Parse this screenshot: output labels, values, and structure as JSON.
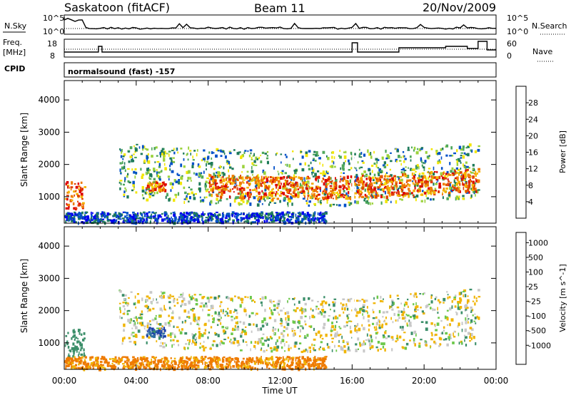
{
  "header": {
    "station": "Saskatoon (fitACF)",
    "beam": "Beam 11",
    "date": "20/Nov/2009"
  },
  "info_panels": {
    "nsky_label": "N.Sky",
    "nsky_ticks": [
      "10^5",
      "10^0"
    ],
    "nsearch_label": "N.Search",
    "freq_label_1": "Freq.",
    "freq_label_2": "[MHz]",
    "freq_ticks": [
      "18",
      "8"
    ],
    "nave_ticks": [
      "60",
      "0"
    ],
    "nave_label": "Nave",
    "cpid_label": "CPID",
    "cpid_value": "normalsound (fast) -157"
  },
  "chart_data": [
    {
      "type": "heatmap",
      "panel": "power",
      "ylabel": "Slant Range [km]",
      "ylim": [
        180,
        4600
      ],
      "yticks": [
        1000,
        2000,
        3000,
        4000
      ],
      "xlim_hours": [
        0,
        24
      ],
      "colorbar": {
        "label": "Power [dB]",
        "ticks": [
          4,
          8,
          12,
          16,
          20,
          24,
          28
        ],
        "colors": [
          "#0000ee",
          "#0050c8",
          "#1e7a5a",
          "#4fa85a",
          "#9bd23c",
          "#f2e600",
          "#f5b400",
          "#ee7a00",
          "#e04000",
          "#dd0000"
        ]
      },
      "description_bands": [
        {
          "t": [
            0.0,
            1.1
          ],
          "range": [
            650,
            1500
          ],
          "level": "high"
        },
        {
          "t": [
            4.5,
            5.6
          ],
          "range": [
            1200,
            1500
          ],
          "level": "high"
        },
        {
          "t": [
            3.0,
            23.0
          ],
          "range": [
            1000,
            2700
          ],
          "level": "medium"
        },
        {
          "t": [
            8.0,
            23.0
          ],
          "range": [
            1200,
            1900
          ],
          "level": "high"
        },
        {
          "t": [
            0.0,
            14.5
          ],
          "range": [
            200,
            550
          ],
          "level": "low"
        }
      ]
    },
    {
      "type": "heatmap",
      "panel": "velocity",
      "ylabel": "Slant Range [km]",
      "ylim": [
        180,
        4600
      ],
      "yticks": [
        1000,
        2000,
        3000,
        4000
      ],
      "xlim_hours": [
        0,
        24
      ],
      "xlabel": "Time UT",
      "xticks": [
        "00:00",
        "04:00",
        "08:00",
        "12:00",
        "16:00",
        "20:00",
        "00:00"
      ],
      "colorbar": {
        "label": "Velocity [m s^-1]",
        "ticks": [
          "1000",
          "500",
          "100",
          "25",
          "-25",
          "-100",
          "-500",
          "-1000"
        ],
        "colors": [
          "#1a3ca8",
          "#2f6fa0",
          "#3c8f6a",
          "#6cc84a",
          "#c8c8c8",
          "#f0b400",
          "#ee7a00",
          "#e04000",
          "#dd0000"
        ]
      },
      "description_bands": [
        {
          "t": [
            0.0,
            1.1
          ],
          "range": [
            600,
            1500
          ],
          "velocity": 150
        },
        {
          "t": [
            4.5,
            5.6
          ],
          "range": [
            1200,
            1500
          ],
          "velocity": 700
        },
        {
          "t": [
            3.0,
            23.0
          ],
          "range": [
            1000,
            2700
          ],
          "velocity": 0
        },
        {
          "t": [
            0.0,
            14.5
          ],
          "range": [
            200,
            600
          ],
          "velocity": -150
        }
      ]
    }
  ]
}
